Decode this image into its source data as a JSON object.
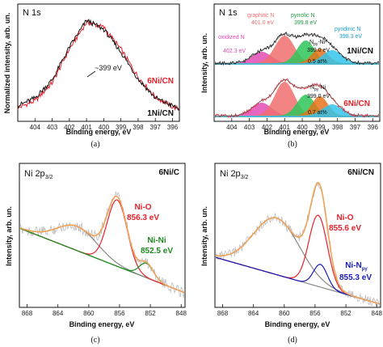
{
  "chart_data": [
    {
      "panel_label": "(a)",
      "type": "line",
      "title": "N 1s",
      "xlabel": "Binding energy, eV",
      "ylabel": "Normalized intensity, arb. un.",
      "xlim": [
        405,
        395.6
      ],
      "x_reversed": true,
      "ylim": [
        0,
        1
      ],
      "xticks": [
        404,
        403,
        402,
        401,
        400,
        399,
        398,
        397,
        396
      ],
      "x": [
        405,
        404,
        403,
        402,
        401,
        400,
        399,
        398,
        397,
        396,
        395.6
      ],
      "series": [
        {
          "name": "6Ni/CN",
          "color": "#e8212b",
          "values": [
            0.07,
            0.14,
            0.32,
            0.66,
            0.93,
            0.88,
            0.66,
            0.38,
            0.18,
            0.08,
            0.06
          ]
        },
        {
          "name": "1Ni/CN",
          "color": "#111111",
          "values": [
            0.09,
            0.17,
            0.35,
            0.68,
            0.95,
            0.86,
            0.63,
            0.36,
            0.17,
            0.09,
            0.06
          ]
        }
      ],
      "annotations": [
        {
          "text": "~399 eV",
          "x": 399.4,
          "y": 0.56
        }
      ]
    },
    {
      "panel_label": "(b)",
      "type": "line",
      "title": "N 1s",
      "xlabel": "Binding energy, eV",
      "ylabel": "Intensity, arb. un.",
      "xlim": [
        405,
        395.6
      ],
      "x_reversed": true,
      "xticks": [
        404,
        403,
        402,
        401,
        400,
        399,
        398,
        397,
        396
      ],
      "sample_labels": [
        "1Ni/CN",
        "6Ni/CN"
      ],
      "components": [
        {
          "label": "oxidized N",
          "position": "402.3 eV",
          "center": 402.3,
          "color": "#e24bb5"
        },
        {
          "label": "graphitic N",
          "position": "401.0 eV",
          "center": 401.0,
          "color": "#f06e6e"
        },
        {
          "label": "pyrrolic N",
          "position": "399.8 eV",
          "center": 399.8,
          "color": "#2fc55a"
        },
        {
          "label": "N",
          "subscript": "py",
          "label_suffix": "-Ni",
          "position": "399.0 eV",
          "center": 399.0,
          "color": "#e8731a"
        },
        {
          "label": "pyridinic N",
          "position": "398.3 eV",
          "center": 398.3,
          "color": "#35c4ea"
        }
      ],
      "npy_ni_content": [
        "0.5 at%",
        "0.7 at%"
      ]
    },
    {
      "panel_label": "(c)",
      "type": "line",
      "title": "Ni 2p",
      "title_subscript": "3/2",
      "sample": "6Ni/C",
      "xlabel": "Binding energy, eV",
      "ylabel": "Intensity, arb. un.",
      "xlim": [
        869,
        847.5
      ],
      "x_reversed": true,
      "xticks": [
        868,
        864,
        860,
        856,
        852,
        848
      ],
      "components": [
        {
          "label": "Ni-O",
          "position": "856.3 eV",
          "color": "#e8212b"
        },
        {
          "label": "Ni-Ni",
          "position": "852.5 eV",
          "color": "#1f8a1f"
        }
      ]
    },
    {
      "panel_label": "(d)",
      "type": "line",
      "title": "Ni 2p",
      "title_subscript": "3/2",
      "sample": "6Ni/CN",
      "xlabel": "Binding energy, eV",
      "ylabel": "Intensity, arb. un.",
      "xlim": [
        869,
        847.5
      ],
      "x_reversed": true,
      "xticks": [
        868,
        864,
        860,
        856,
        852,
        848
      ],
      "components": [
        {
          "label": "Ni-O",
          "position": "855.6 eV",
          "color": "#e8212b"
        },
        {
          "label": "Ni-N",
          "subscript": "py",
          "position": "855.3 eV",
          "color": "#1a1ab8"
        }
      ]
    }
  ]
}
